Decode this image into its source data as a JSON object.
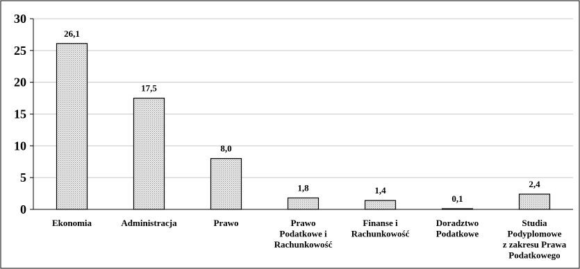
{
  "chart_data": {
    "type": "bar",
    "categories": [
      [
        "Ekonomia"
      ],
      [
        "Administracja"
      ],
      [
        "Prawo"
      ],
      [
        "Prawo",
        "Podatkowe i",
        "Rachunkowość"
      ],
      [
        "Finanse i",
        "Rachunkowość"
      ],
      [
        "Doradztwo",
        "Podatkowe"
      ],
      [
        "Studia",
        "Podyplomowe",
        "z zakresu Prawa",
        "Podatkowego"
      ]
    ],
    "values": [
      26.1,
      17.5,
      8.0,
      1.8,
      1.4,
      0.1,
      2.4
    ],
    "data_labels": [
      "26,1",
      "17,5",
      "8,0",
      "1,8",
      "1,4",
      "0,1",
      "2,4"
    ],
    "y_ticks": [
      "0",
      "5",
      "10",
      "15",
      "20",
      "25",
      "30"
    ],
    "ylim": [
      0,
      30
    ],
    "grid": true,
    "bar_fill": "#d9d9d9",
    "bar_pattern": "dotted",
    "bar_stroke": "#000000",
    "grid_color": "#c8c8c8"
  }
}
